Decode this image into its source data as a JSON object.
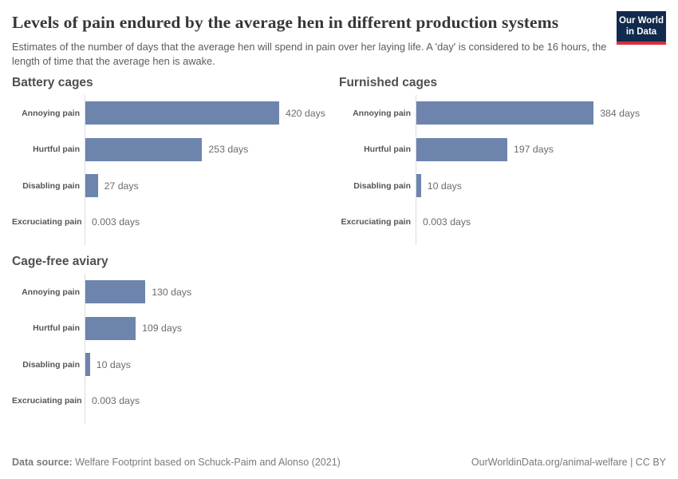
{
  "header": {
    "title": "Levels of pain endured by the average hen in different production systems",
    "subtitle": "Estimates of the number of days that the average hen will spend in pain over her laying life. A 'day' is considered to be 16 hours, the length of time that the average hen is awake.",
    "logo": {
      "line1": "Our World",
      "line2": "in Data"
    }
  },
  "chart_data": {
    "type": "bar",
    "orientation": "horizontal",
    "layout": "small-multiples-2col",
    "unit": "days",
    "grid": false,
    "legend": "none",
    "xmax": 420,
    "categories": [
      "Annoying pain",
      "Hurtful pain",
      "Disabling pain",
      "Excruciating pain"
    ],
    "series": [
      {
        "name": "Battery cages",
        "values": [
          420,
          253,
          27,
          0.003
        ],
        "labels": [
          "420 days",
          "253 days",
          "27 days",
          "0.003 days"
        ]
      },
      {
        "name": "Furnished cages",
        "values": [
          384,
          197,
          10,
          0.003
        ],
        "labels": [
          "384 days",
          "197 days",
          "10 days",
          "0.003 days"
        ]
      },
      {
        "name": "Cage-free aviary",
        "values": [
          130,
          109,
          10,
          0.003
        ],
        "labels": [
          "130 days",
          "109 days",
          "10 days",
          "0.003 days"
        ]
      }
    ],
    "bar_color": "#6d84ad",
    "axis_color": "#dcdcdc"
  },
  "footer": {
    "source_label": "Data source:",
    "source_text": "Welfare Footprint based on Schuck-Paim and Alonso (2021)",
    "credit": "OurWorldinData.org/animal-welfare | CC BY"
  },
  "colors": {
    "logo_navy": "#112a4d",
    "logo_red": "#d4323f",
    "bar": "#6d84ad"
  }
}
